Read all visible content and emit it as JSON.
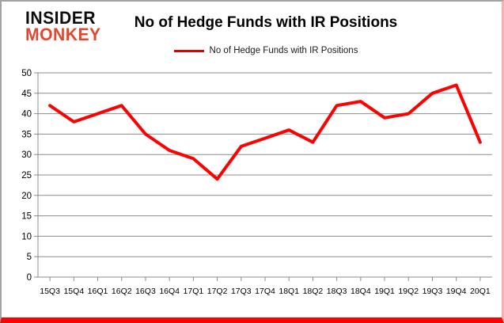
{
  "header": {
    "logo_line1": "INSIDER",
    "logo_line2": "MONKEY",
    "title": "No of Hedge Funds with IR Positions"
  },
  "legend": {
    "label": "No of Hedge Funds with IR Positions"
  },
  "colors": {
    "line": "#ff0000",
    "legend_line": "#e00000",
    "grid": "#8c8c8c",
    "axis": "#8c8c8c",
    "text": "#000000",
    "logo_black": "#0d0d0d",
    "logo_red": "#e2472e",
    "bottom_bar": "#ff0000"
  },
  "chart_data": {
    "type": "line",
    "title": "No of Hedge Funds with IR Positions",
    "series_name": "No of Hedge Funds with IR Positions",
    "categories": [
      "15Q3",
      "15Q4",
      "16Q1",
      "16Q2",
      "16Q3",
      "16Q4",
      "17Q1",
      "17Q2",
      "17Q3",
      "17Q4",
      "18Q1",
      "18Q2",
      "18Q3",
      "18Q4",
      "19Q1",
      "19Q2",
      "19Q3",
      "19Q4",
      "20Q1"
    ],
    "values": [
      42,
      38,
      40,
      42,
      35,
      31,
      29,
      24,
      32,
      34,
      36,
      33,
      42,
      43,
      39,
      40,
      45,
      47,
      33
    ],
    "xlabel": "",
    "ylabel": "",
    "ylim": [
      0,
      50
    ],
    "y_ticks": [
      0,
      5,
      10,
      15,
      20,
      25,
      30,
      35,
      40,
      45,
      50
    ],
    "grid": true,
    "legend_position": "top",
    "line_color": "#ff0000",
    "line_width": 4
  }
}
